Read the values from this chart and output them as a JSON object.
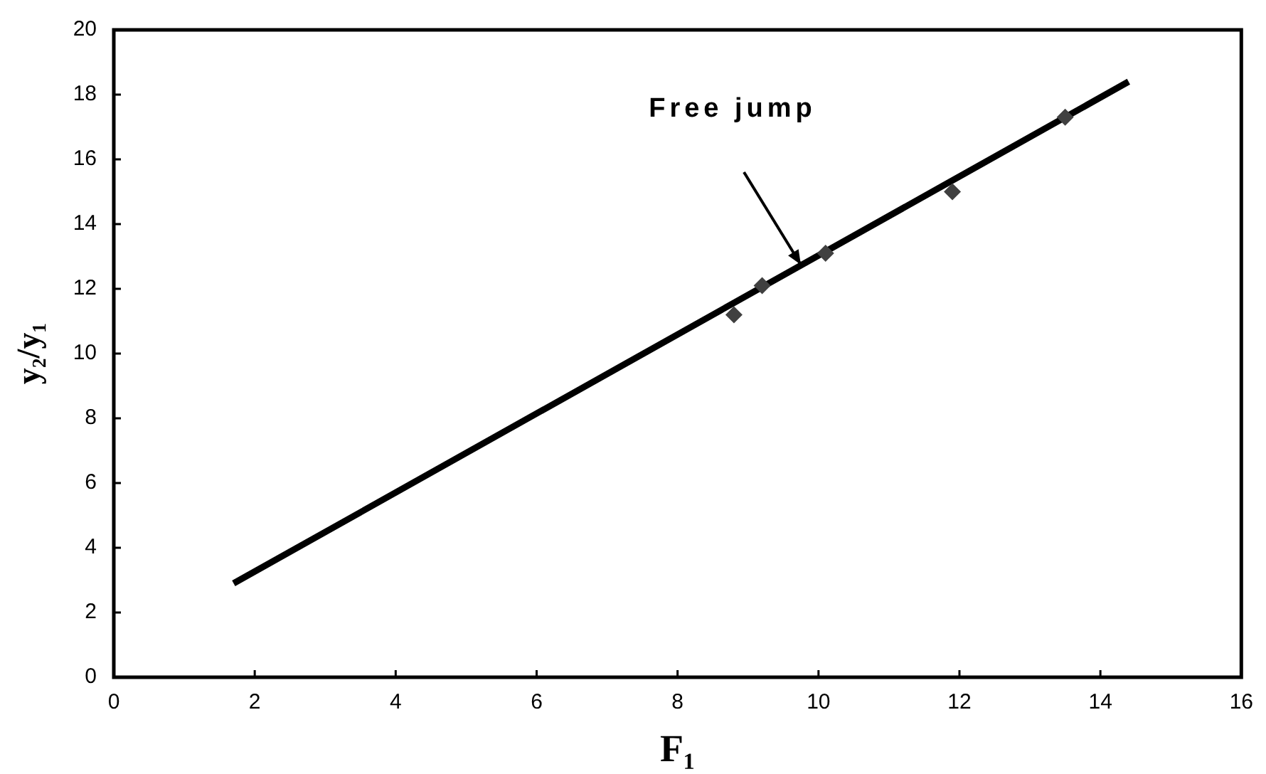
{
  "chart_data": {
    "type": "scatter",
    "xlabel": "F₁",
    "ylabel": "y₂/y₁",
    "marker": "diamond",
    "xlim": [
      0,
      16
    ],
    "xticks": [
      0,
      2,
      4,
      6,
      8,
      10,
      12,
      14,
      16
    ],
    "ylim": [
      0,
      20
    ],
    "yticks": [
      0,
      2,
      4,
      6,
      8,
      10,
      12,
      14,
      16,
      18,
      20
    ],
    "series": [
      {
        "type": "scatter",
        "color": "#404040",
        "x": [
          8.8,
          9.2,
          10.1,
          11.9,
          13.5
        ],
        "values": [
          11.2,
          12.1,
          13.1,
          15.0,
          17.3
        ]
      },
      {
        "type": "line",
        "color": "#000000",
        "marker": "none",
        "line_style": "solid",
        "x": [
          1.7,
          14.4
        ],
        "values": [
          2.9,
          18.4
        ]
      }
    ],
    "annotations": [
      "Free jump"
    ]
  }
}
